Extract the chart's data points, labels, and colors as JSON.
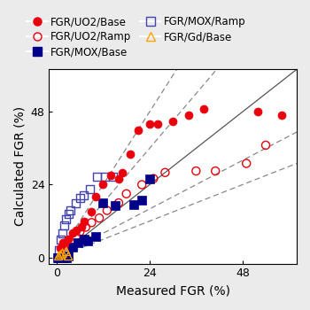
{
  "title": "",
  "xlabel": "Measured FGR (%)",
  "ylabel": "Calculated FGR (%)",
  "xlim": [
    -2,
    62
  ],
  "ylim": [
    -2,
    62
  ],
  "xticks": [
    0,
    24,
    48
  ],
  "yticks": [
    0,
    24,
    48
  ],
  "xticklabels": [
    "0",
    "24",
    "48"
  ],
  "yticklabels": [
    "0",
    "24",
    "48"
  ],
  "background_color": "#ebebeb",
  "plot_bg": "#ffffff",
  "fgr_uo2_base": [
    [
      1.0,
      3.0
    ],
    [
      1.5,
      5.0
    ],
    [
      2.0,
      4.5
    ],
    [
      3.0,
      6.0
    ],
    [
      4.0,
      8.0
    ],
    [
      5.0,
      9.0
    ],
    [
      6.5,
      10.0
    ],
    [
      7.0,
      12.0
    ],
    [
      9.0,
      15.0
    ],
    [
      10.0,
      20.0
    ],
    [
      12.0,
      24.0
    ],
    [
      14.0,
      27.0
    ],
    [
      16.0,
      26.0
    ],
    [
      17.0,
      28.0
    ],
    [
      19.0,
      34.0
    ],
    [
      21.0,
      42.0
    ],
    [
      24.0,
      44.0
    ],
    [
      26.0,
      44.0
    ],
    [
      30.0,
      45.0
    ],
    [
      34.0,
      47.0
    ],
    [
      38.0,
      49.0
    ],
    [
      52.0,
      48.0
    ],
    [
      58.0,
      47.0
    ]
  ],
  "fgr_uo2_ramp": [
    [
      2.0,
      2.5
    ],
    [
      3.5,
      5.0
    ],
    [
      5.0,
      7.0
    ],
    [
      6.0,
      8.5
    ],
    [
      7.5,
      10.0
    ],
    [
      9.0,
      11.5
    ],
    [
      11.0,
      13.0
    ],
    [
      13.0,
      15.5
    ],
    [
      16.0,
      18.0
    ],
    [
      18.0,
      21.0
    ],
    [
      22.0,
      24.0
    ],
    [
      25.0,
      26.0
    ],
    [
      28.0,
      28.0
    ],
    [
      36.0,
      28.5
    ],
    [
      41.0,
      28.5
    ],
    [
      49.0,
      31.0
    ],
    [
      54.0,
      37.0
    ]
  ],
  "fgr_mox_base": [
    [
      0.3,
      0.0
    ],
    [
      0.5,
      0.0
    ],
    [
      1.0,
      0.0
    ],
    [
      1.5,
      0.0
    ],
    [
      2.0,
      0.0
    ],
    [
      2.5,
      0.0
    ],
    [
      3.0,
      0.5
    ],
    [
      4.0,
      3.5
    ],
    [
      5.5,
      5.0
    ],
    [
      7.0,
      6.0
    ],
    [
      8.0,
      5.5
    ],
    [
      10.0,
      7.0
    ],
    [
      12.0,
      18.0
    ],
    [
      15.0,
      17.0
    ],
    [
      20.0,
      17.5
    ],
    [
      22.0,
      19.0
    ],
    [
      24.0,
      26.0
    ]
  ],
  "fgr_mox_ramp": [
    [
      0.5,
      2.5
    ],
    [
      1.0,
      6.0
    ],
    [
      1.5,
      8.0
    ],
    [
      2.0,
      10.5
    ],
    [
      2.5,
      12.5
    ],
    [
      3.0,
      14.5
    ],
    [
      3.5,
      15.5
    ],
    [
      5.0,
      18.0
    ],
    [
      6.0,
      19.5
    ],
    [
      7.0,
      20.5
    ],
    [
      8.5,
      22.5
    ],
    [
      10.5,
      26.5
    ],
    [
      12.5,
      26.5
    ],
    [
      14.5,
      26.5
    ]
  ],
  "fgr_gd_base": [
    [
      0.5,
      0.5
    ],
    [
      1.0,
      1.0
    ],
    [
      1.5,
      1.5
    ],
    [
      2.5,
      2.0
    ],
    [
      3.0,
      0.5
    ]
  ],
  "diagonal_line_range": [
    0,
    62
  ],
  "factor2_above": 2.0,
  "factor2_below": 0.5,
  "factor15_above": 1.5,
  "factor15_below": 0.6667,
  "colors": {
    "uo2_base": "#e8000d",
    "uo2_ramp": "#e8000d",
    "mox_base": "#00008B",
    "mox_ramp": "#4444aa",
    "gd_base": "#FFA500",
    "diag_solid": "#555555",
    "diag_dashed": "#888888"
  },
  "marker_size": 6.5,
  "legend_fontsize": 8.5,
  "axis_label_fontsize": 10
}
